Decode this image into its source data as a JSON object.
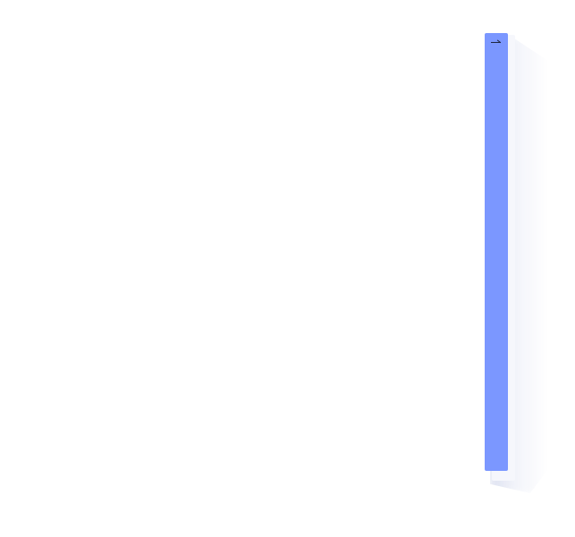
{
  "side_panel": {
    "state": "collapsed",
    "color": "#7b97ff",
    "expand_icon": "arrow-right-icon"
  },
  "page": {
    "background": "#ffffff"
  }
}
